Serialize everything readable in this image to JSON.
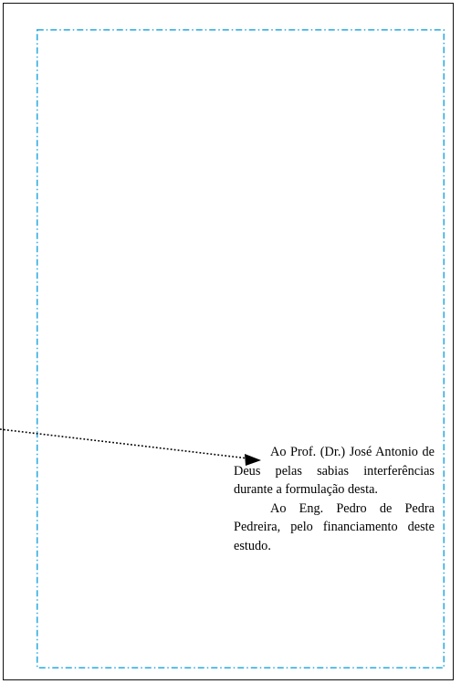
{
  "dedication": {
    "paragraphs": [
      "Ao Prof. (Dr.) José Antonio de Deus pelas sabias interferências durante a formulação desta.",
      "Ao Eng. Pedro de Pedra Pedreira, pelo financiamento deste estudo."
    ]
  },
  "colors": {
    "margin_guide": "#29a9e0",
    "page_border": "#111111",
    "pointer_line": "#000000"
  }
}
